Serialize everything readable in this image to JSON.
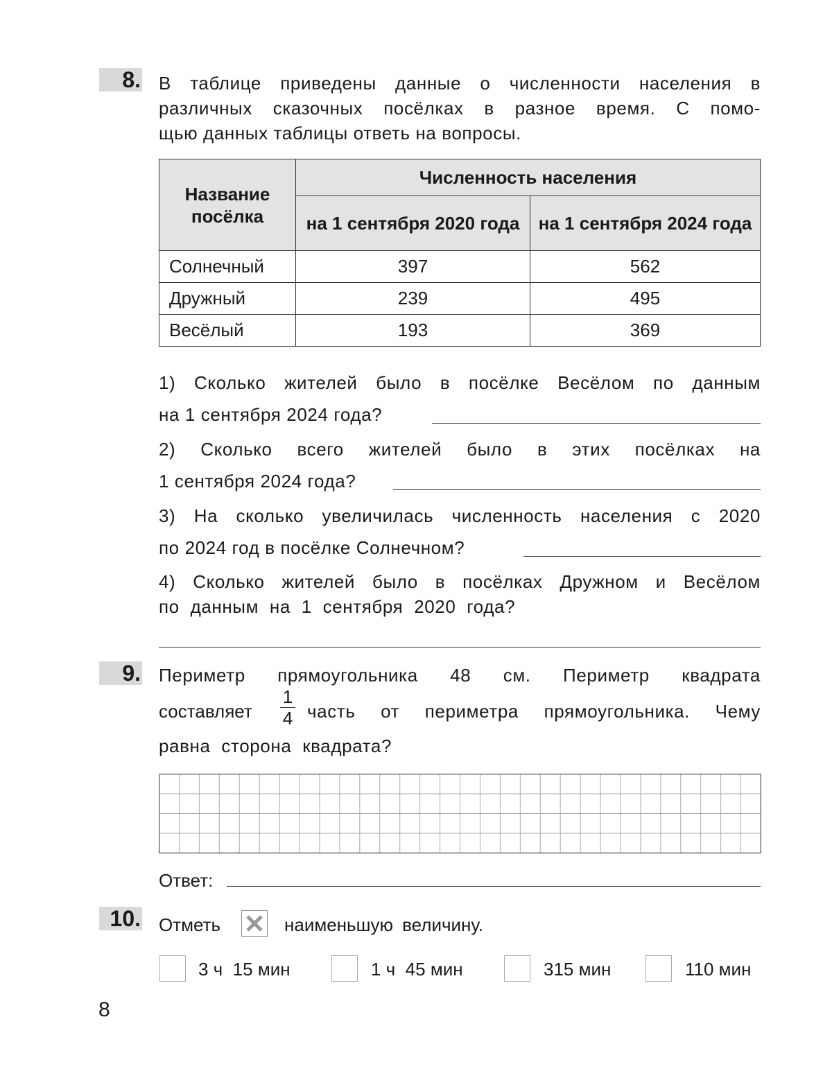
{
  "task8": {
    "number": "8.",
    "text_lines": [
      "В таблице приведены данные о численности населения в",
      "различных сказочных посёлках в разное время. С помо-",
      "щью данных таблицы ответь на вопросы."
    ],
    "table": {
      "col_name": "Название посёлка",
      "group_header": "Численность населения",
      "col_2020": "на 1 сентября 2020 года",
      "col_2024": "на 1 сентября 2024 года",
      "rows": [
        {
          "name": "Солнечный",
          "y2020": "397",
          "y2024": "562"
        },
        {
          "name": "Дружный",
          "y2020": "239",
          "y2024": "495"
        },
        {
          "name": "Весёлый",
          "y2020": "193",
          "y2024": "369"
        }
      ]
    },
    "questions": [
      [
        "1) Сколько жителей было в посёлке Весёлом по данным",
        "на 1 сентября 2024 года?"
      ],
      [
        "2) Сколько всего жителей было в этих посёлках на",
        "1 сентября 2024 года?"
      ],
      [
        "3) На сколько увеличилась численность населения с 2020",
        "по 2024 год в посёлке Солнечном?"
      ],
      [
        "4) Сколько жителей было в посёлках Дружном и Весёлом",
        "по данным на 1 сентября 2020 года?"
      ]
    ]
  },
  "task9": {
    "number": "9.",
    "line1": "Периметр прямоугольника 48 см. Периметр квадрата",
    "line2_a": "составляет",
    "fraction_num": "1",
    "fraction_den": "4",
    "line2_b": "часть от периметра прямоугольника. Чему",
    "line3": "равна сторона квадрата?",
    "answer_label": "Ответ:"
  },
  "task10": {
    "number": "10.",
    "text_a": "Отметь",
    "mark_icon": "x-mark-icon",
    "text_b": "наименьшую величину.",
    "options": [
      "3 ч  15 мин",
      "1 ч  45 мин",
      "315 мин",
      "110 мин"
    ]
  },
  "page_number": "8",
  "colors": {
    "badge": "#d9d9d9",
    "table_header": "#e3e3e3",
    "grid": "#aaaaaa"
  }
}
